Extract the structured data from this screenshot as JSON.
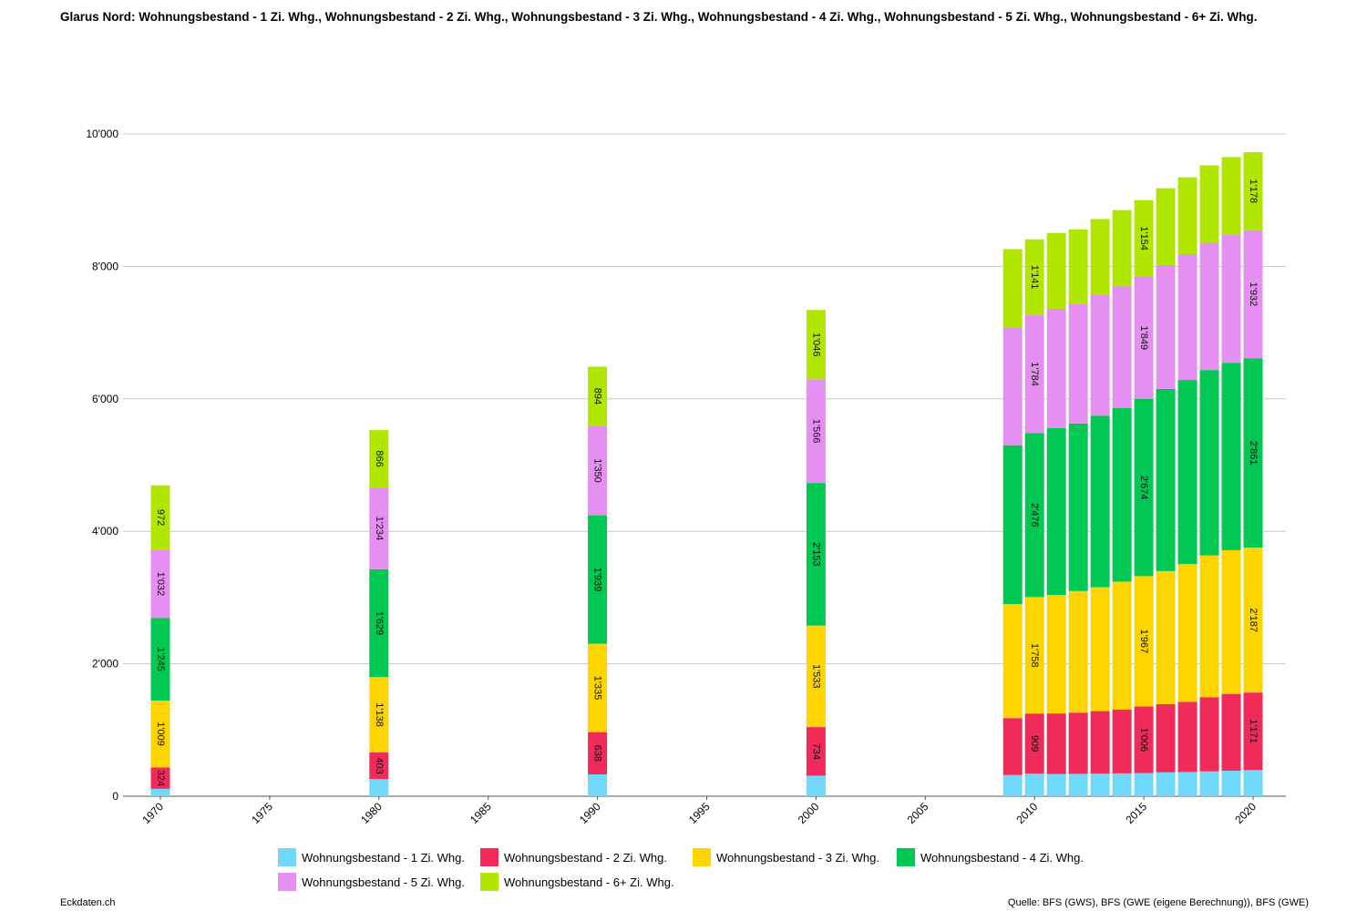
{
  "title": "Glarus Nord: Wohnungsbestand - 1 Zi. Whg., Wohnungsbestand - 2 Zi. Whg., Wohnungsbestand - 3 Zi. Whg., Wohnungsbestand - 4 Zi. Whg., Wohnungsbestand - 5 Zi. Whg., Wohnungsbestand - 6+ Zi. Whg.",
  "footer": {
    "brand": "Eckdaten.ch",
    "source": "Quelle: BFS (GWS), BFS (GWE (eigene Berechnung)), BFS (GWE)"
  },
  "chart_data": {
    "type": "bar",
    "stacked": true,
    "xlim": [
      1970,
      2020
    ],
    "x_ticks": [
      1970,
      1975,
      1980,
      1985,
      1990,
      1995,
      2000,
      2005,
      2010,
      2015,
      2020
    ],
    "ylim": [
      0,
      10000
    ],
    "y_ticks": [
      0,
      2000,
      4000,
      6000,
      8000,
      10000
    ],
    "y_tick_labels": [
      "0",
      "2'000",
      "4'000",
      "6'000",
      "8'000",
      "10'000"
    ],
    "grid": true,
    "legend_position": "bottom",
    "x": [
      1970,
      1980,
      1990,
      2000,
      2009,
      2010,
      2011,
      2012,
      2013,
      2014,
      2015,
      2016,
      2017,
      2018,
      2019,
      2020
    ],
    "labeled_x": [
      1970,
      1980,
      1990,
      2000,
      2010,
      2015,
      2020
    ],
    "series": [
      {
        "name": "Wohnungsbestand - 1 Zi. Whg.",
        "color": "#6fd8fb",
        "values": [
          112,
          258,
          330,
          310,
          320,
          340,
          335,
          338,
          340,
          345,
          350,
          360,
          365,
          375,
          385,
          395
        ]
      },
      {
        "name": "Wohnungsbestand - 2 Zi. Whg.",
        "color": "#f02b5a",
        "values": [
          324,
          403,
          638,
          734,
          860,
          909,
          915,
          925,
          945,
          965,
          1006,
          1030,
          1060,
          1120,
          1160,
          1171
        ]
      },
      {
        "name": "Wohnungsbestand - 3 Zi. Whg.",
        "color": "#ffd500",
        "values": [
          1009,
          1138,
          1335,
          1533,
          1720,
          1758,
          1790,
          1835,
          1870,
          1930,
          1967,
          2010,
          2080,
          2140,
          2170,
          2187
        ]
      },
      {
        "name": "Wohnungsbestand - 4 Zi. Whg.",
        "color": "#00c853",
        "values": [
          1245,
          1629,
          1939,
          2153,
          2400,
          2476,
          2520,
          2530,
          2590,
          2620,
          2674,
          2750,
          2780,
          2800,
          2830,
          2861
        ]
      },
      {
        "name": "Wohnungsbestand - 5 Zi. Whg.",
        "color": "#e68ff2",
        "values": [
          1032,
          1234,
          1350,
          1566,
          1770,
          1784,
          1800,
          1800,
          1830,
          1840,
          1849,
          1870,
          1900,
          1920,
          1930,
          1932
        ]
      },
      {
        "name": "Wohnungsbestand - 6+ Zi. Whg.",
        "color": "#b1e600",
        "values": [
          972,
          866,
          894,
          1046,
          1190,
          1141,
          1145,
          1130,
          1140,
          1150,
          1154,
          1160,
          1160,
          1170,
          1175,
          1178
        ]
      }
    ]
  }
}
